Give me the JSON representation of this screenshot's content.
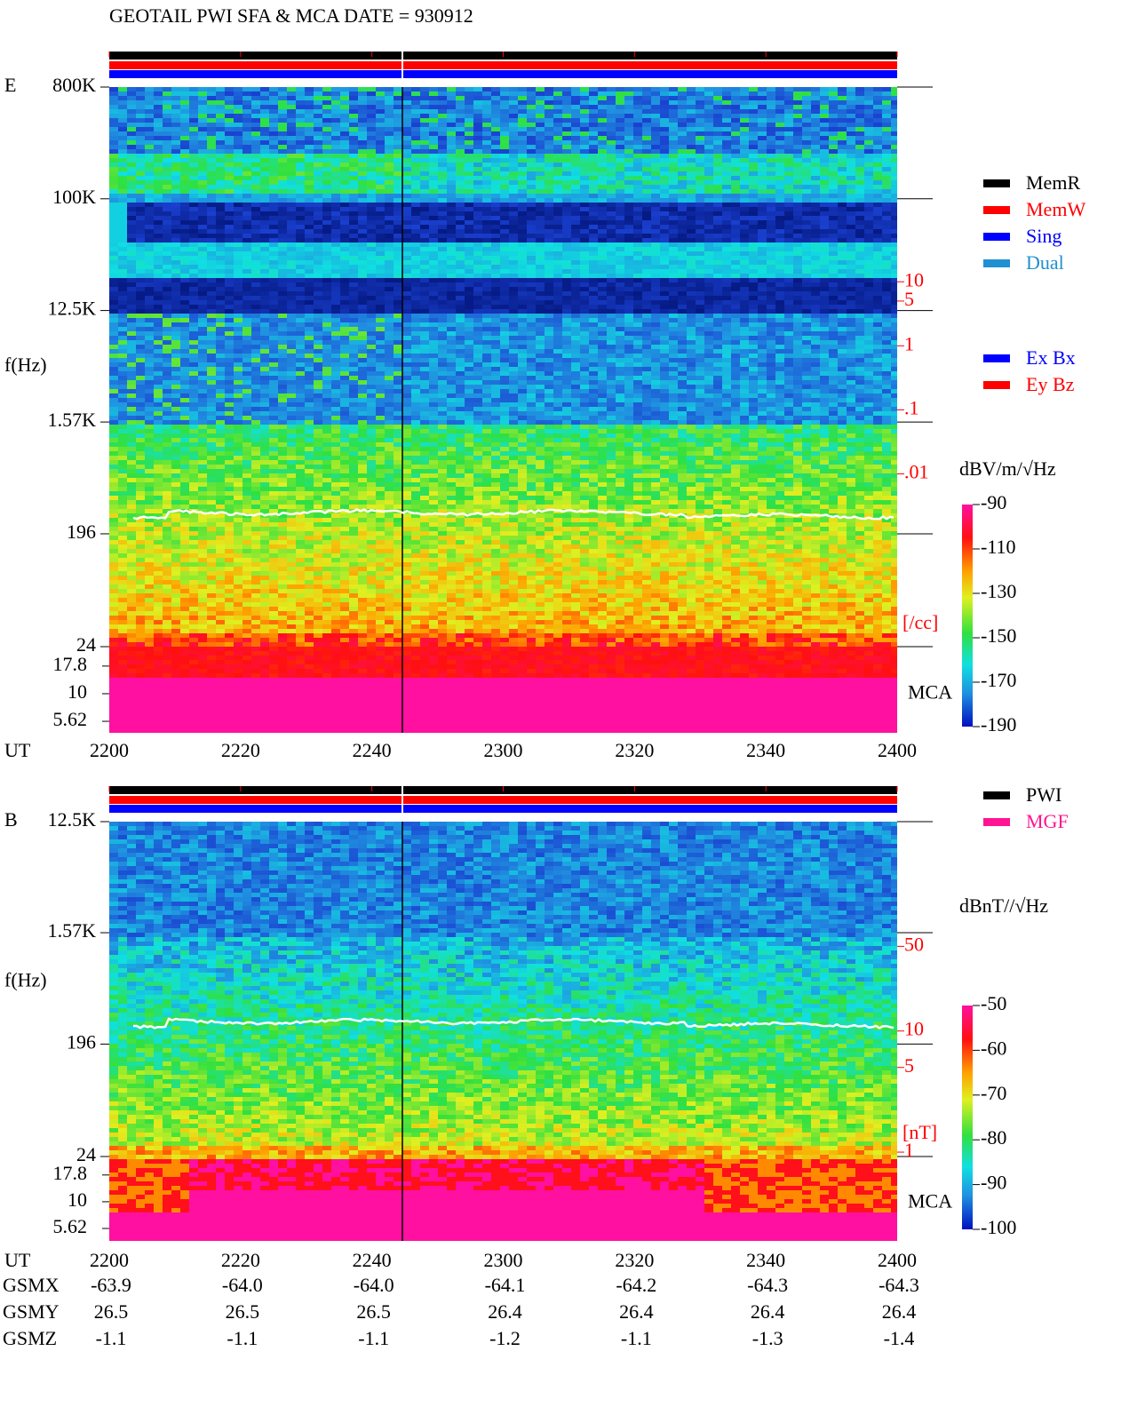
{
  "title": "GEOTAIL  PWI SFA & MCA   DATE = 930912",
  "chart_data": [
    {
      "type": "spectrogram",
      "panel_label": "E",
      "y_label": "f(Hz)",
      "x_label": "UT",
      "categories": [
        "2200",
        "2220",
        "2240",
        "2300",
        "2320",
        "2340",
        "2400"
      ],
      "yscale": "log",
      "ylim": [
        24,
        800000
      ],
      "yticks": [
        {
          "value": 800000,
          "label": "800K"
        },
        {
          "value": 100000,
          "label": "100K"
        },
        {
          "value": 12500,
          "label": "12.5K"
        },
        {
          "value": 1570,
          "label": "1.57K"
        },
        196,
        24
      ],
      "mca_label": "MCA",
      "mca_ylim": [
        4.42,
        26.7
      ],
      "mca_yticks": [
        17.8,
        10,
        5.62
      ],
      "y2lim": [
        2e-05,
        11000
      ],
      "y2ticks": [
        10,
        5,
        1,
        {
          "value": 0.1,
          "label": ".1"
        },
        {
          "value": 0.01,
          "label": ".01"
        }
      ],
      "y2_label": "[/cc]",
      "y2_color": "#ff0000",
      "colorbar_label": "dBV/m/√Hz",
      "zlim": [
        -190,
        -90
      ],
      "zticks": [
        -90,
        -110,
        -130,
        -150,
        -170,
        -190
      ],
      "legend": [
        {
          "name": "MemR",
          "color": "#000000"
        },
        {
          "name": "MemW",
          "color": "#ff0000"
        },
        {
          "name": "Sing",
          "color": "#0000ff"
        },
        {
          "name": "Dual",
          "color": "#2090d0"
        }
      ],
      "legend2": [
        {
          "name": "Ex Bx",
          "color": "#0000ff"
        },
        {
          "name": "Ey Bz",
          "color": "#ff0000"
        }
      ]
    },
    {
      "type": "spectrogram",
      "panel_label": "B",
      "y_label": "f(Hz)",
      "x_label": "UT",
      "categories": [
        "2200",
        "2220",
        "2240",
        "2300",
        "2320",
        "2340",
        "2400"
      ],
      "yscale": "log",
      "ylim": [
        24,
        12500
      ],
      "yticks": [
        {
          "value": 12500,
          "label": "12.5K"
        },
        {
          "value": 1570,
          "label": "1.57K"
        },
        196,
        24
      ],
      "mca_label": "MCA",
      "mca_ylim": [
        4.3,
        26.5
      ],
      "mca_yticks": [
        17.8,
        10,
        5.62
      ],
      "y2lim": [
        0.92,
        535
      ],
      "y2ticks": [
        50,
        10,
        5,
        1
      ],
      "y2_label": "[nT]",
      "y2_color": "#ff0000",
      "colorbar_label": "dBnT//√Hz",
      "zlim": [
        -100,
        -50
      ],
      "zticks": [
        -50,
        -60,
        -70,
        -80,
        -90,
        -100
      ],
      "legend": [
        {
          "name": "PWI",
          "color": "#000000"
        },
        {
          "name": "MGF",
          "color": "#ff1493"
        }
      ]
    }
  ],
  "orbit": {
    "rows": [
      {
        "name": "GSMX",
        "values": [
          "-63.9",
          "-64.0",
          "-64.0",
          "-64.1",
          "-64.2",
          "-64.3",
          "-64.3"
        ]
      },
      {
        "name": "GSMY",
        "values": [
          "26.5",
          "26.5",
          "26.5",
          "26.4",
          "26.4",
          "26.4",
          "26.4"
        ]
      },
      {
        "name": "GSMZ",
        "values": [
          "-1.1",
          "-1.1",
          "-1.1",
          "-1.2",
          "-1.1",
          "-1.3",
          "-1.4"
        ]
      }
    ]
  }
}
